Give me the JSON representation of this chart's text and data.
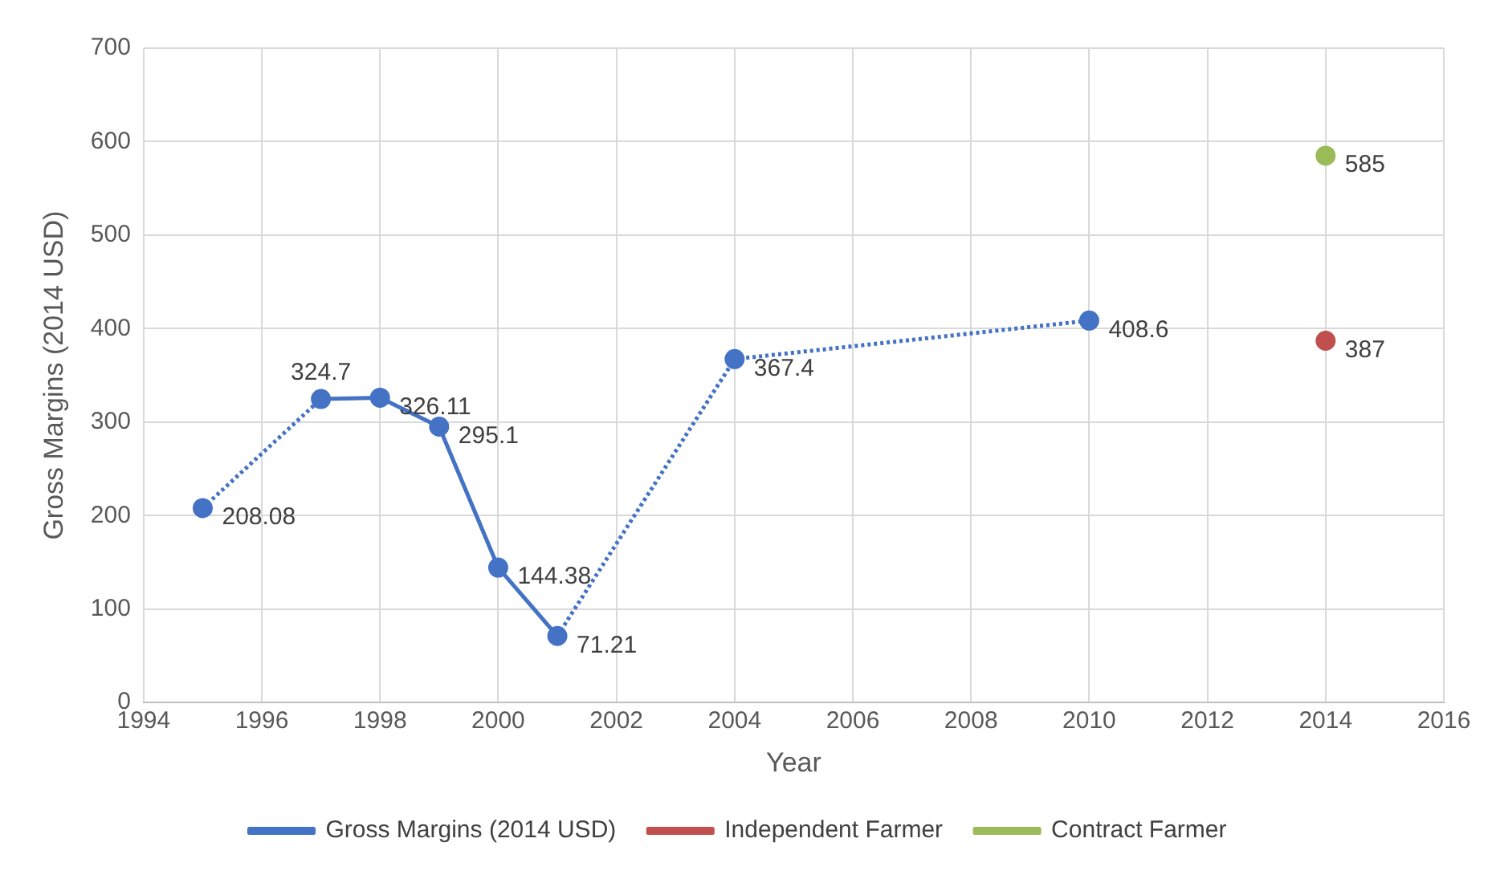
{
  "chart_data": {
    "type": "line",
    "xlabel": "Year",
    "ylabel": "Gross Margins (2014 USD)",
    "xlim": [
      1994,
      2016
    ],
    "xticks": [
      1994,
      1996,
      1998,
      2000,
      2002,
      2004,
      2006,
      2008,
      2010,
      2012,
      2014,
      2016
    ],
    "ylim": [
      0,
      700
    ],
    "yticks": [
      0,
      100,
      200,
      300,
      400,
      500,
      600,
      700
    ],
    "grid": true,
    "legend": "bottom",
    "marker": "circle",
    "data_labels": true,
    "series": [
      {
        "name": "Gross Margins (2014 USD)",
        "color": "#4472c4",
        "x": [
          1995,
          1997,
          1998,
          1999,
          2000,
          2001,
          2004,
          2010
        ],
        "values": [
          208.08,
          324.7,
          326.11,
          295.1,
          144.38,
          71.21,
          367.4,
          408.6
        ]
      },
      {
        "name": "Independent Farmer",
        "color": "#c0504d",
        "x": [
          2014
        ],
        "values": [
          387
        ]
      },
      {
        "name": "Contract Farmer",
        "color": "#9bbb59",
        "x": [
          2014
        ],
        "values": [
          585
        ]
      }
    ]
  }
}
